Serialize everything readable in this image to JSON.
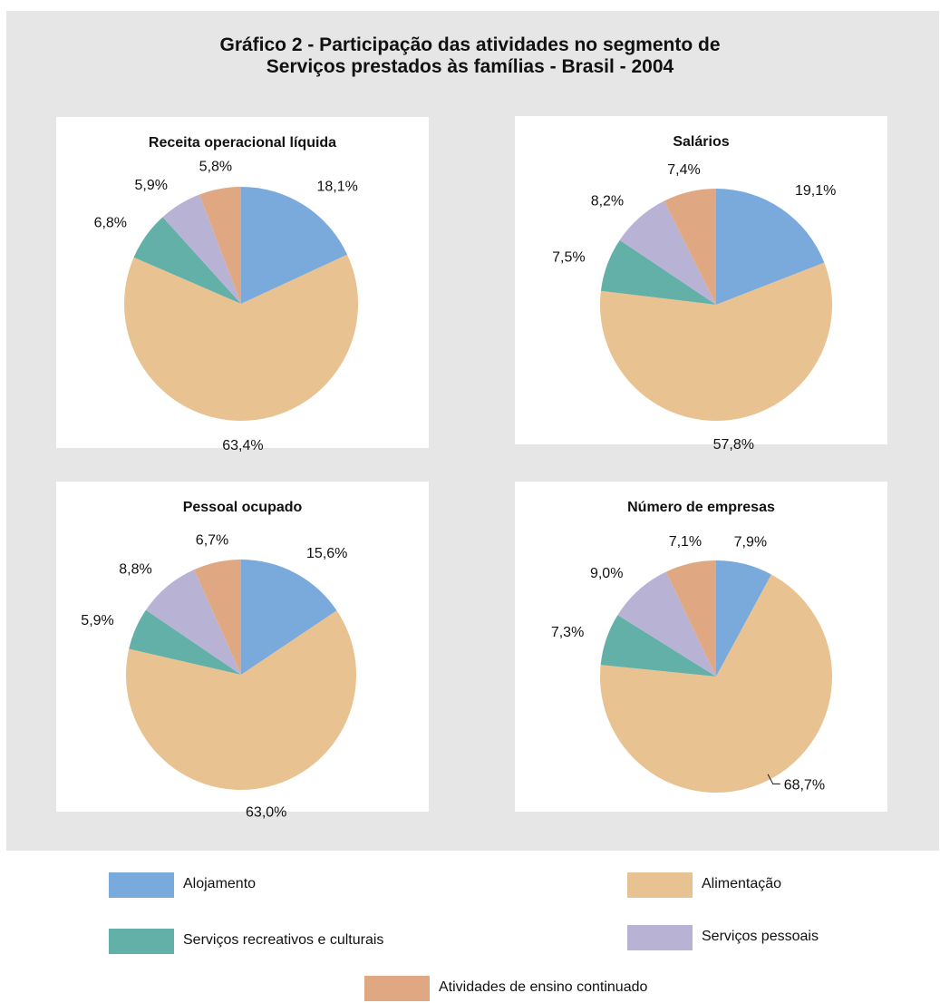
{
  "title": {
    "line1": "Gráfico 2 - Participação das atividades no segmento de",
    "line2": "Serviços prestados às famílias  - Brasil - 2004"
  },
  "colors": {
    "Alojamento": "#7aa9dc",
    "Alimentação": "#e8c290",
    "Serviços recreativos e culturais": "#63b0a8",
    "Serviços pessoais": "#b8b3d4",
    "Atividades de ensino continuado": "#e0a882"
  },
  "legend": [
    {
      "label": "Alojamento",
      "color": "#7aa9dc"
    },
    {
      "label": "Alimentação",
      "color": "#e8c290"
    },
    {
      "label": "Serviços recreativos e culturais",
      "color": "#63b0a8"
    },
    {
      "label": "Serviços pessoais",
      "color": "#b8b3d4"
    },
    {
      "label": "Atividades de ensino continuado",
      "color": "#e0a882"
    }
  ],
  "chart_data": [
    {
      "type": "pie",
      "title": "Receita operacional líquida",
      "categories": [
        "Alojamento",
        "Alimentação",
        "Serviços recreativos e culturais",
        "Serviços pessoais",
        "Atividades de ensino continuado"
      ],
      "values": [
        18.1,
        63.4,
        6.8,
        5.9,
        5.8
      ],
      "labels": [
        "18,1%",
        "63,4%",
        "6,8%",
        "5,9%",
        "5,8%"
      ]
    },
    {
      "type": "pie",
      "title": "Salários",
      "categories": [
        "Alojamento",
        "Alimentação",
        "Serviços recreativos e culturais",
        "Serviços pessoais",
        "Atividades de ensino continuado"
      ],
      "values": [
        19.1,
        57.8,
        7.5,
        8.2,
        7.4
      ],
      "labels": [
        "19,1%",
        "57,8%",
        "7,5%",
        "8,2%",
        "7,4%"
      ]
    },
    {
      "type": "pie",
      "title": "Pessoal ocupado",
      "categories": [
        "Alojamento",
        "Alimentação",
        "Serviços recreativos e culturais",
        "Serviços pessoais",
        "Atividades de ensino continuado"
      ],
      "values": [
        15.6,
        63.0,
        5.9,
        8.8,
        6.7
      ],
      "labels": [
        "15,6%",
        "63,0%",
        "5,9%",
        "8,8%",
        "6,7%"
      ]
    },
    {
      "type": "pie",
      "title": "Número de empresas",
      "categories": [
        "Alojamento",
        "Alimentação",
        "Serviços recreativos e culturais",
        "Serviços pessoais",
        "Atividades de ensino continuado"
      ],
      "values": [
        7.9,
        68.7,
        7.3,
        9.0,
        7.1
      ],
      "labels": [
        "7,9%",
        "68,7%",
        "7,3%",
        "9,0%",
        "7,1%"
      ]
    }
  ]
}
